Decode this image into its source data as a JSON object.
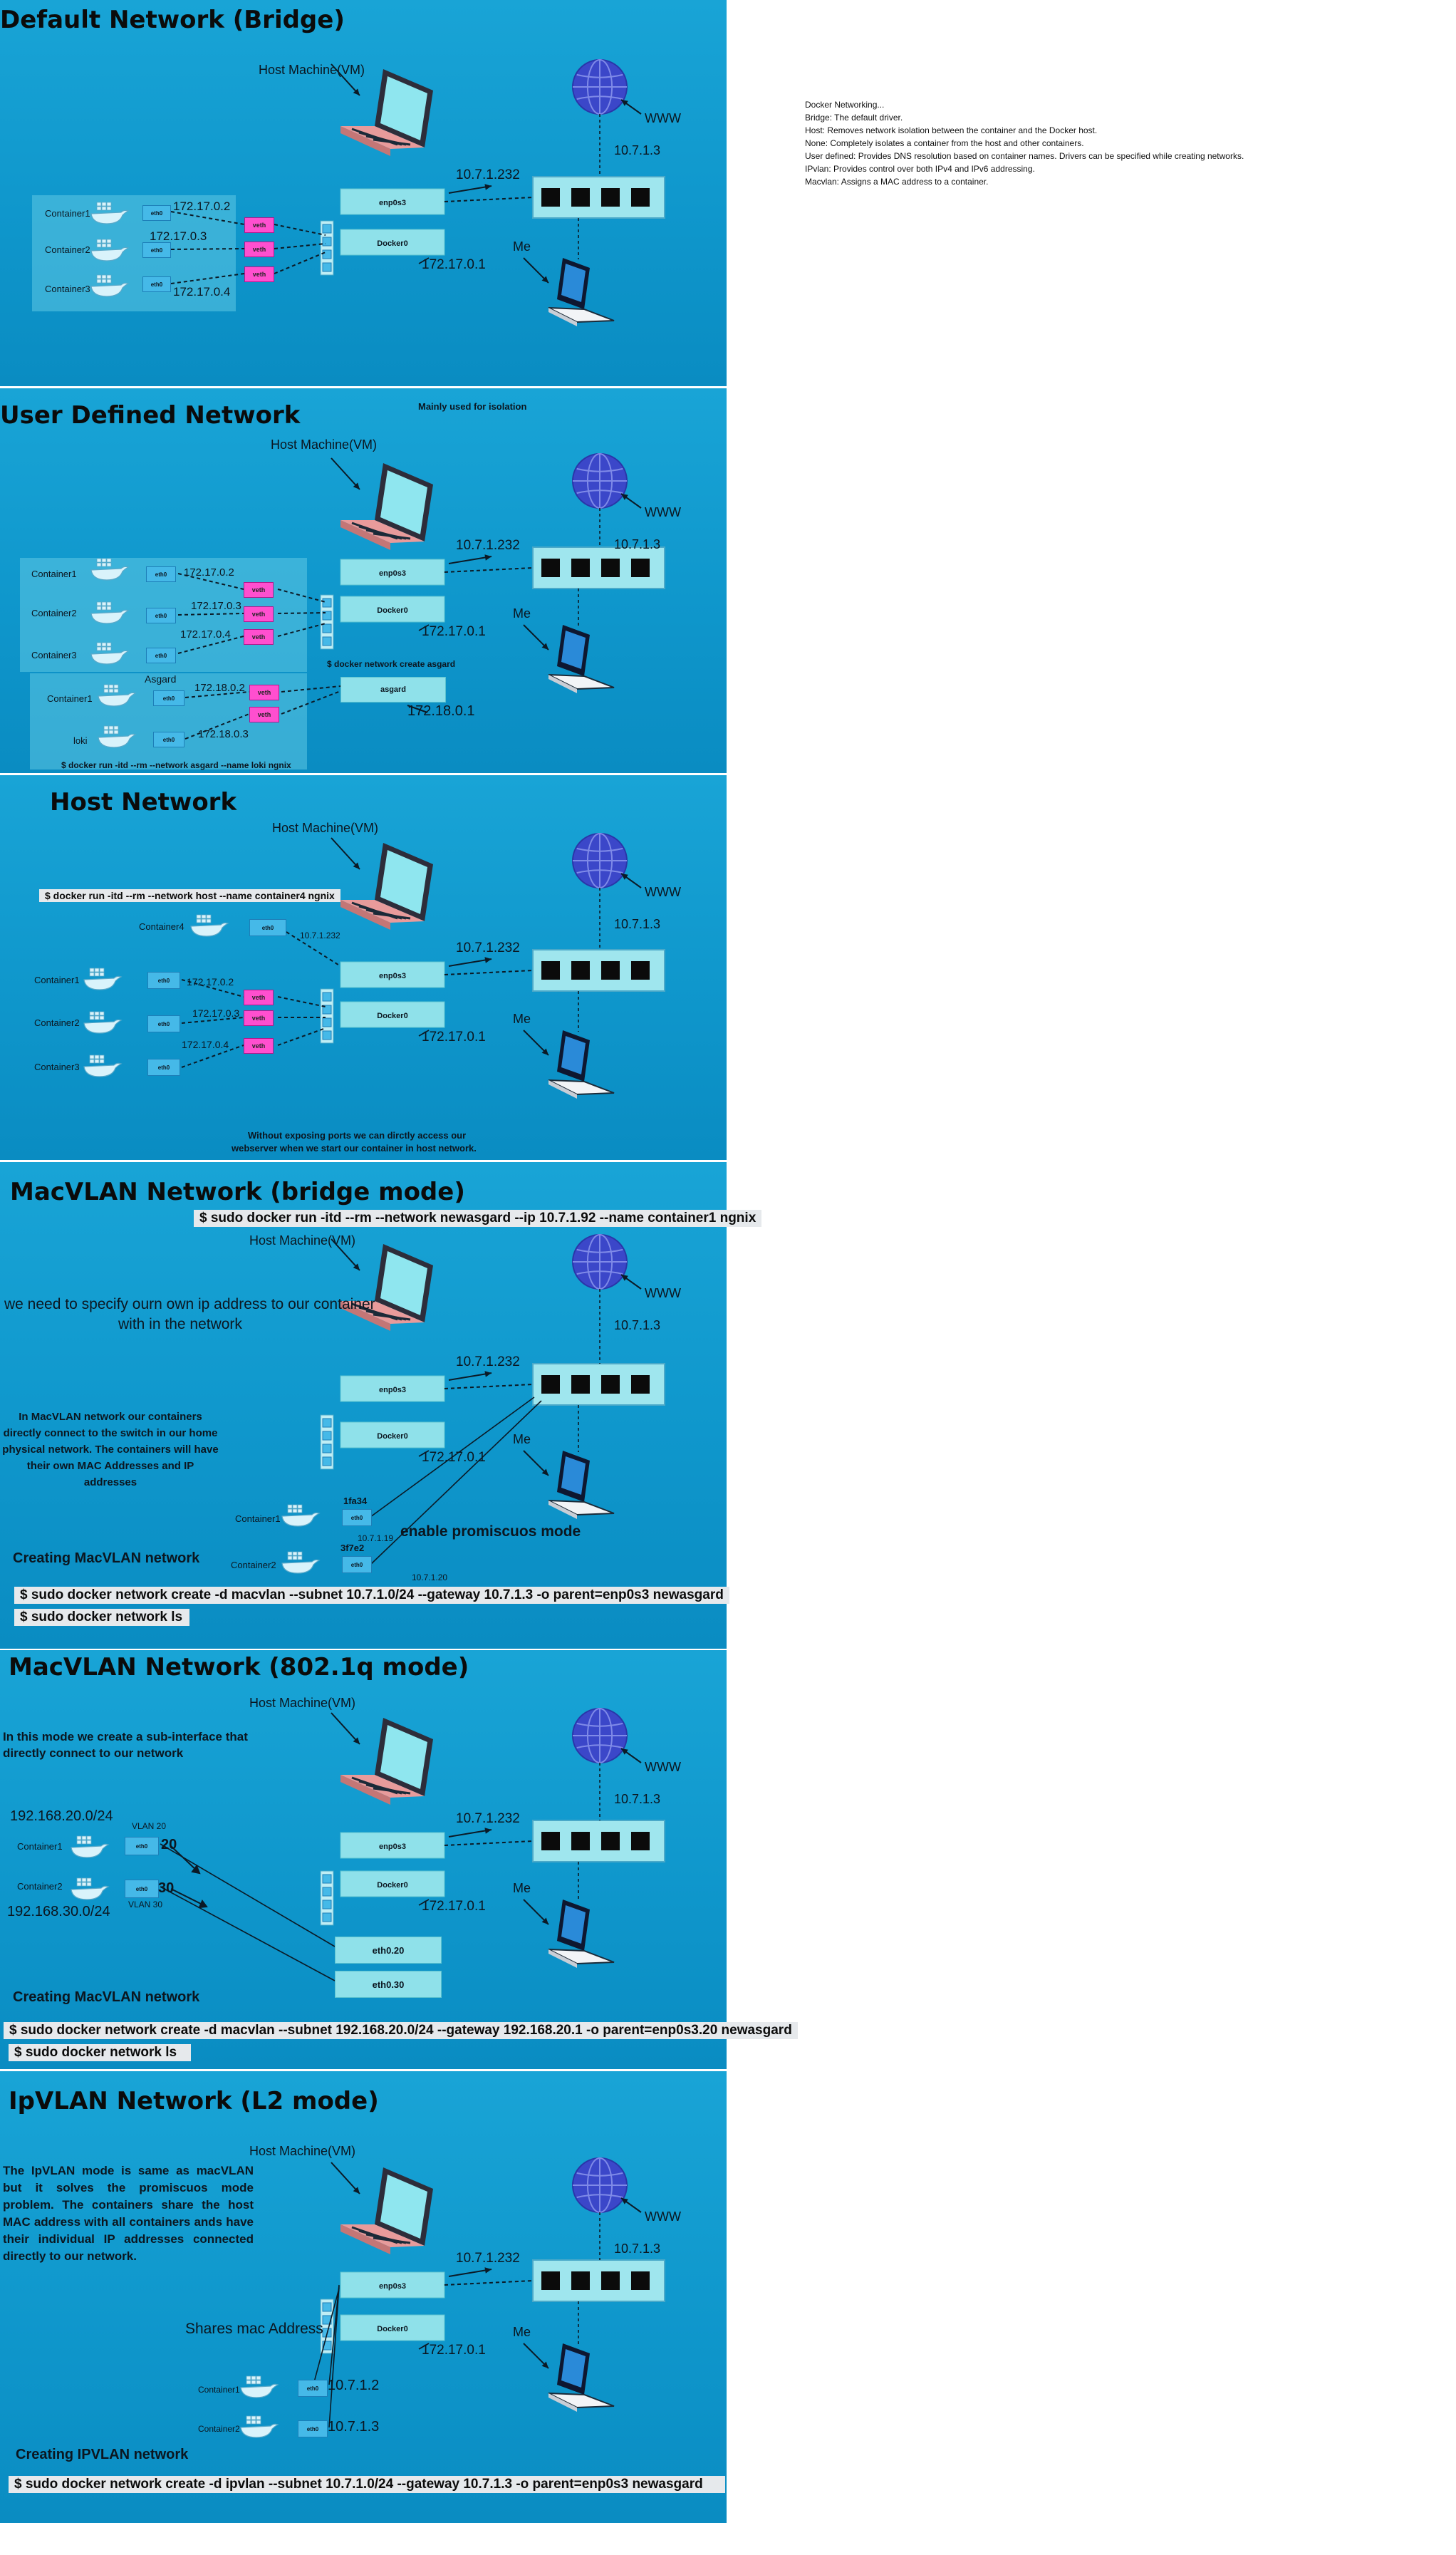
{
  "colors": {
    "panel": "#14a0d4",
    "switch": "#9fe6ee",
    "iface": "#8fe1ea",
    "eth": "#45b9e8",
    "veth": "#ff4fcf",
    "line": "#0b1a26",
    "globe": "#3b47c9"
  },
  "icons": [
    "laptop-icon",
    "globe-icon",
    "switch-icon",
    "docker-whale-icon",
    "user-laptop-icon"
  ],
  "notes": {
    "lines": [
      "Docker Networking...",
      "Bridge: The default driver.",
      "Host: Removes network isolation between the container and the Docker host.",
      "None: Completely isolates a container from the host and other containers.",
      "User defined: Provides DNS resolution based on container names. Drivers can be specified while creating networks.",
      "IPvlan: Provides control over both IPv4 and IPv6 addressing.",
      "Macvlan: Assigns a MAC address to a container."
    ]
  },
  "common": {
    "host_machine": "Host Machine(VM)",
    "www": "WWW",
    "gateway_ip": "10.7.1.3",
    "host_ip": "10.7.1.232",
    "me": "Me",
    "enp0s3": "enp0s3",
    "docker0": "Docker0",
    "docker0_ip": "172.17.0.1",
    "eth0": "eth0",
    "veth": "veth",
    "container1": "Container1",
    "container2": "Container2",
    "container3": "Container3",
    "ip_c1": "172.17.0.2",
    "ip_c2": "172.17.0.3",
    "ip_c3": "172.17.0.4"
  },
  "bridge": {
    "title": "Default Network (Bridge)"
  },
  "user_defined": {
    "title": "User Defined Network",
    "note": "Mainly used for isolation",
    "create_cmd": "$ docker network create asgard",
    "asgard": "asgard",
    "asgard_ip": "172.18.0.1",
    "asgard_box_title": "Asgard",
    "asgard_c1": "Container1",
    "asgard_c1_ip": "172.18.0.2",
    "loki": "loki",
    "loki_ip": "172.18.0.3",
    "run_cmd": "$ docker run -itd --rm --network asgard --name loki ngnix"
  },
  "host": {
    "title": "Host Network",
    "cmd": "$ docker run -itd --rm --network host --name container4 ngnix",
    "container4": "Container4",
    "c4_ip": "10.7.1.232",
    "footer_1": "Without exposing ports we can dirctly access our",
    "footer_2": "webserver when we start our container in host network."
  },
  "macvlan_bridge": {
    "title": "MacVLAN Network (bridge mode)",
    "run_cmd": "$ sudo docker run -itd --rm --network newasgard --ip 10.7.1.92 --name container1 ngnix",
    "own_ip_1": "we need to specify ourn own ip address to our container",
    "own_ip_2": "with in the network",
    "para": "In MacVLAN network our containers directly connect to the switch in our home physical network. The containers will have their own MAC Addresses and IP addresses",
    "mac1": "1fa34",
    "mac2": "3f7e2",
    "ip1": "10.7.1.19",
    "ip2": "10.7.1.20",
    "promisc": "enable promiscuos mode",
    "creating": "Creating MacVLAN network",
    "create_cmd": "$ sudo docker  network create -d macvlan --subnet 10.7.1.0/24 --gateway 10.7.1.3 -o parent=enp0s3 newasgard",
    "ls_cmd": "$ sudo docker network ls"
  },
  "macvlan_8021q": {
    "title": "MacVLAN Network (802.1q mode)",
    "para": "In this mode we create a sub-interface that directly connect to our network",
    "subnet20": "192.168.20.0/24",
    "subnet30": "192.168.30.0/24",
    "vlan20": "VLAN 20",
    "vlan30": "VLAN 30",
    "tag20": "20",
    "tag30": "30",
    "eth020": "eth0.20",
    "eth030": "eth0.30",
    "creating": "Creating MacVLAN network",
    "create_cmd": "$ sudo docker  network create -d macvlan --subnet 192.168.20.0/24 --gateway 192.168.20.1 -o parent=enp0s3.20 newasgard",
    "ls_cmd": "$ sudo docker network ls"
  },
  "ipvlan": {
    "title": "IpVLAN Network (L2 mode)",
    "para": "The IpVLAN mode is same as macVLAN but it solves the promiscuos mode problem. The containers share the host MAC address with all containers ands have their individual IP addresses connected directly to our network.",
    "shares_mac": "Shares mac Address",
    "ip1": "10.7.1.2",
    "ip2": "10.7.1.3",
    "creating": "Creating IPVLAN network",
    "create_cmd": "$ sudo docker  network create -d ipvlan --subnet 10.7.1.0/24 --gateway 10.7.1.3 -o parent=enp0s3 newasgard"
  }
}
